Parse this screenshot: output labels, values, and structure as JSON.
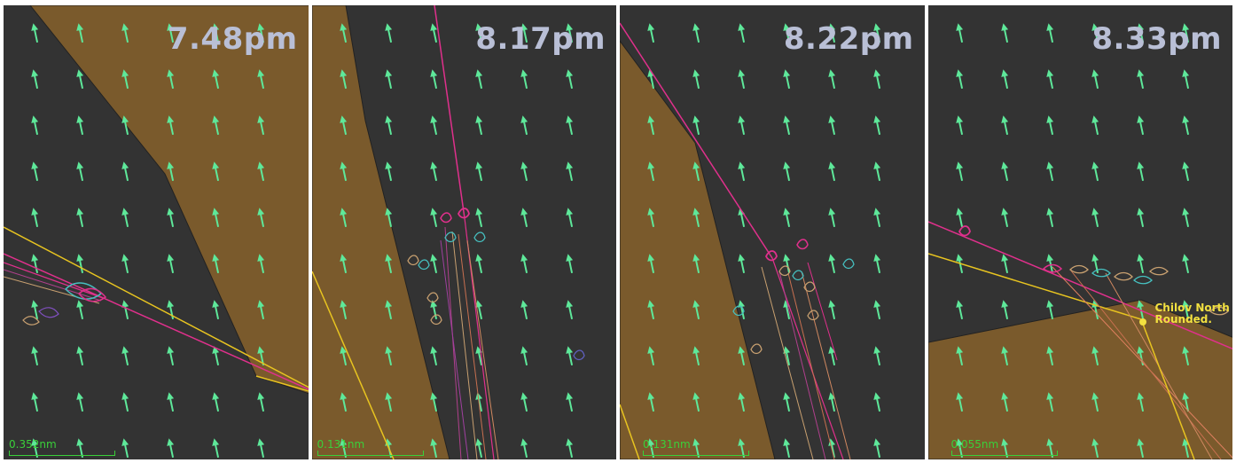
{
  "panels": [
    {
      "time": "7.48pm",
      "scale_label": "0.352nm"
    },
    {
      "time": "8.17pm",
      "scale_label": "0.131nm"
    },
    {
      "time": "8.22pm",
      "scale_label": "0.131nm"
    },
    {
      "time": "8.33pm",
      "scale_label": "0.055nm",
      "mark_label_line1": "Chilov North",
      "mark_label_line2": "Rounded."
    }
  ],
  "colors": {
    "water": "#333333",
    "land": "#7a5a2c",
    "current_arrow": "#5ee89a",
    "track_leader": "#e0308c",
    "track_fleet": "#c8a070",
    "course_line": "#e8c420",
    "time_label": "#b9bfd6",
    "scale": "#3ad03a"
  },
  "icons": {
    "current_arrow": "arrow-up-icon",
    "boat": "boat-icon",
    "mark": "mark-dot-icon"
  }
}
